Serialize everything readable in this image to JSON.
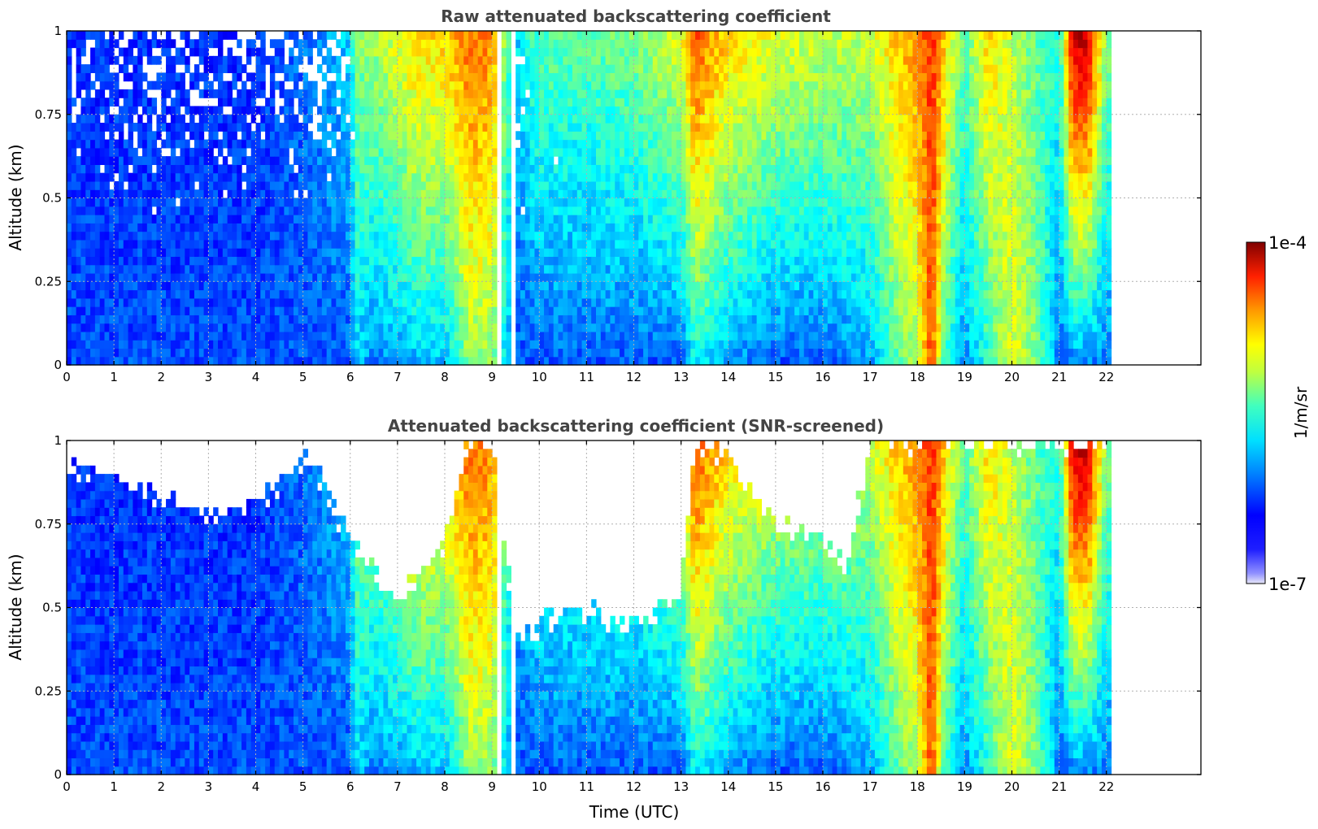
{
  "chart_data": [
    {
      "type": "heatmap",
      "title": "Raw attenuated backscattering coefficient",
      "xlabel": "",
      "ylabel": "Altitude (km)",
      "xlim": [
        0,
        24
      ],
      "ylim": [
        0,
        1
      ],
      "x_ticks": [
        "0",
        "1",
        "2",
        "3",
        "4",
        "5",
        "6",
        "7",
        "8",
        "9",
        "10",
        "11",
        "12",
        "13",
        "14",
        "15",
        "16",
        "17",
        "18",
        "19",
        "20",
        "21",
        "22"
      ],
      "y_ticks": [
        "0",
        "0.25",
        "0.5",
        "0.75",
        "1"
      ],
      "grid": true,
      "screened": false,
      "data_end_hour": 22.1,
      "gaps_hours": [
        [
          9.12,
          9.18
        ],
        [
          9.42,
          9.5
        ]
      ],
      "colorscale": "jet",
      "cell_minutes": 6,
      "log10_backscatter_profile": {
        "hours": [
          0,
          1,
          2,
          3,
          4,
          5,
          6,
          6.1,
          6.5,
          7,
          7.4,
          8,
          8.5,
          9,
          9.5,
          10,
          11,
          12,
          13,
          13.3,
          13.6,
          14,
          14.5,
          15,
          16,
          17,
          17.5,
          18,
          18.3,
          18.6,
          19,
          19.5,
          20,
          20.5,
          21,
          21.3,
          21.6,
          22
        ],
        "surface": [
          -6.4,
          -6.4,
          -6.4,
          -6.4,
          -6.4,
          -6.4,
          -6.4,
          -6.0,
          -6.3,
          -6.2,
          -6.1,
          -6.1,
          -5.5,
          -5.5,
          -6.4,
          -6.4,
          -6.4,
          -6.4,
          -6.4,
          -5.9,
          -6.0,
          -6.2,
          -6.3,
          -6.4,
          -6.4,
          -6.2,
          -5.7,
          -5.4,
          -4.6,
          -5.8,
          -6.2,
          -5.8,
          -5.2,
          -5.5,
          -6.3,
          -6.3,
          -6.3,
          -6.3
        ],
        "top": [
          -6.5,
          -6.5,
          -6.5,
          -6.5,
          -6.5,
          -6.3,
          -6.0,
          -5.5,
          -5.4,
          -5.2,
          -5.0,
          -5.0,
          -4.7,
          -4.8,
          -6.0,
          -5.6,
          -5.6,
          -5.5,
          -5.2,
          -4.6,
          -4.8,
          -5.0,
          -5.1,
          -5.2,
          -5.3,
          -5.3,
          -5.0,
          -4.8,
          -4.5,
          -5.0,
          -5.6,
          -5.0,
          -5.3,
          -5.6,
          -5.8,
          -4.2,
          -4.2,
          -5.5
        ]
      }
    },
    {
      "type": "heatmap",
      "title": "Attenuated backscattering coefficient (SNR-screened)",
      "xlabel": "Time (UTC)",
      "ylabel": "Altitude (km)",
      "xlim": [
        0,
        24
      ],
      "ylim": [
        0,
        1
      ],
      "x_ticks": [
        "0",
        "1",
        "2",
        "3",
        "4",
        "5",
        "6",
        "7",
        "8",
        "9",
        "10",
        "11",
        "12",
        "13",
        "14",
        "15",
        "16",
        "17",
        "18",
        "19",
        "20",
        "21",
        "22"
      ],
      "y_ticks": [
        "0",
        "0.25",
        "0.5",
        "0.75",
        "1"
      ],
      "grid": true,
      "screened": true,
      "data_end_hour": 22.1,
      "gaps_hours": [
        [
          9.12,
          9.18
        ],
        [
          9.42,
          9.5
        ]
      ],
      "colorscale": "jet",
      "cell_minutes": 6,
      "screen_ceiling_km": {
        "hours": [
          0,
          1,
          2,
          3,
          4,
          5,
          5.3,
          6,
          7,
          7.5,
          8,
          8.5,
          9,
          9.5,
          10,
          11,
          11.5,
          12,
          13,
          13.3,
          14,
          15,
          16,
          16.5,
          17,
          17.5,
          18,
          19,
          20,
          21,
          22
        ],
        "altitude": [
          0.92,
          0.88,
          0.82,
          0.78,
          0.8,
          0.95,
          0.9,
          0.7,
          0.52,
          0.62,
          0.7,
          1.0,
          1.0,
          0.4,
          0.45,
          0.5,
          0.45,
          0.45,
          0.55,
          1.0,
          0.95,
          0.75,
          0.7,
          0.6,
          1.0,
          1.0,
          1.0,
          1.0,
          1.0,
          1.0,
          1.0
        ]
      }
    }
  ],
  "colorbar": {
    "max_label": "1e-4",
    "min_label": "1e-7",
    "label": "1/m/sr",
    "log10_min": -7,
    "log10_max": -4
  }
}
